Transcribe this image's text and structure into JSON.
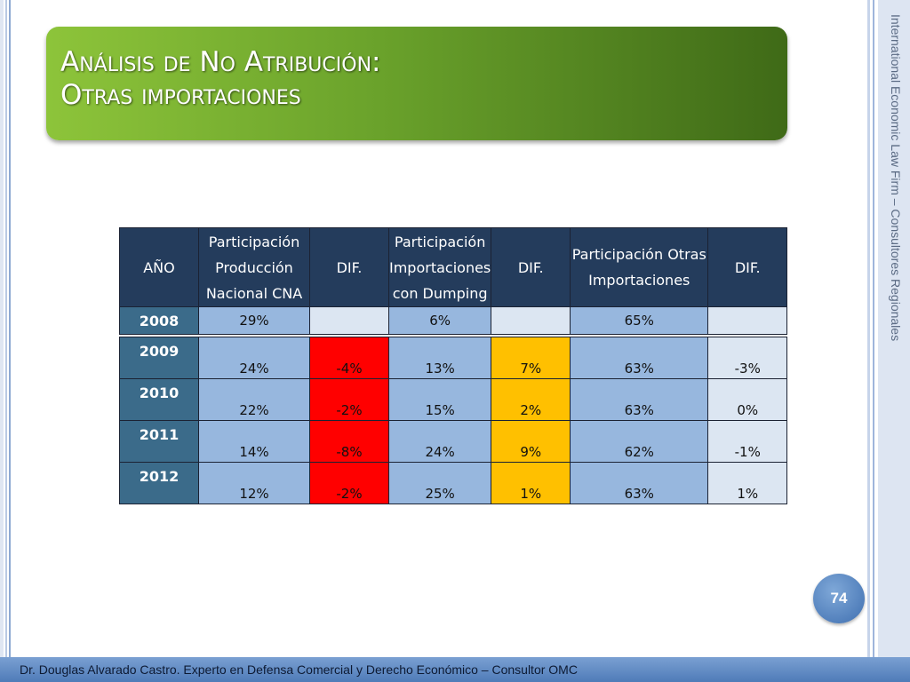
{
  "title": {
    "line1": "Análisis de No Atribución:",
    "line2": "Otras importaciones"
  },
  "side_text": "International Economic Law Firm – Consultores Regionales",
  "table": {
    "headers": [
      "AÑO",
      "Participación Producción Nacional CNA",
      "DIF.",
      "Participación Importaciones con Dumping",
      "DIF.",
      "Participación Otras Importaciones",
      "DIF."
    ],
    "rows": [
      {
        "year": "2008",
        "cna": "29%",
        "dif1": "",
        "dumping": "6%",
        "dif2": "",
        "otras": "65%",
        "dif3": ""
      },
      {
        "year": "2009",
        "cna": "24%",
        "dif1": "-4%",
        "dumping": "13%",
        "dif2": "7%",
        "otras": "63%",
        "dif3": "-3%"
      },
      {
        "year": "2010",
        "cna": "22%",
        "dif1": "-2%",
        "dumping": "15%",
        "dif2": "2%",
        "otras": "63%",
        "dif3": "0%"
      },
      {
        "year": "2011",
        "cna": "14%",
        "dif1": "-8%",
        "dumping": "24%",
        "dif2": "9%",
        "otras": "62%",
        "dif3": "-1%"
      },
      {
        "year": "2012",
        "cna": "12%",
        "dif1": "-2%",
        "dumping": "25%",
        "dif2": "1%",
        "otras": "63%",
        "dif3": "1%"
      }
    ]
  },
  "colors": {
    "header_bg": "#243c5c",
    "year_bg": "#3b6b8a",
    "value_bg": "#97b7de",
    "light_bg": "#dce6f2",
    "negative_dif": "#ff0000",
    "positive_dif": "#ffc000",
    "banner_green": "#6aa22b"
  },
  "page_number": "74",
  "footer": "Dr. Douglas Alvarado Castro. Experto en Defensa Comercial y Derecho Económico – Consultor OMC"
}
